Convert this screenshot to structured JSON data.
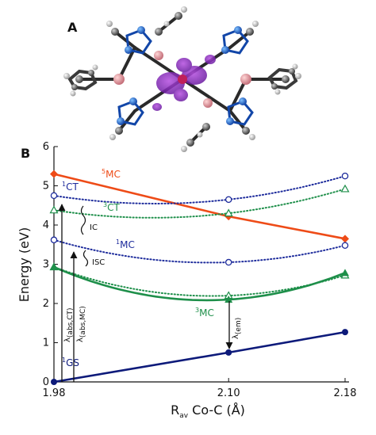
{
  "panels": {
    "a": "A",
    "b": "B"
  },
  "chart_data": {
    "type": "line",
    "xlabel": {
      "main": "R",
      "sub": "av",
      "rest": " Co-C (Å)"
    },
    "ylabel": "Energy (eV)",
    "x": [
      1.98,
      2.1,
      2.18
    ],
    "x_tick_labels": [
      "1.98",
      "2.10",
      "2.18"
    ],
    "ylim": [
      0,
      6
    ],
    "y_ticks": [
      0,
      1,
      2,
      3,
      4,
      5,
      6
    ],
    "grid": false,
    "series": [
      {
        "key": "5MC",
        "label": {
          "sup": "5",
          "main": "MC"
        },
        "color": "#ee4b17",
        "style": "solid",
        "marker": "diamond",
        "values": [
          5.3,
          4.22,
          3.65
        ]
      },
      {
        "key": "1CT",
        "label": {
          "sup": "1",
          "main": "CT"
        },
        "color": "#1e2c9c",
        "style": "dotted",
        "marker": "open-circle",
        "values": [
          4.75,
          4.65,
          5.25
        ]
      },
      {
        "key": "3CT",
        "label": {
          "sup": "3",
          "main": "CT"
        },
        "color": "#1e8f4a",
        "style": "dotted",
        "marker": "open-triangle",
        "values": [
          4.38,
          4.3,
          4.92
        ]
      },
      {
        "key": "1MC",
        "label": {
          "sup": "1",
          "main": "MC"
        },
        "color": "#1e2c9c",
        "style": "dotted",
        "marker": "open-circle",
        "values": [
          3.62,
          3.05,
          3.48
        ]
      },
      {
        "key": "3MC_dot",
        "label": null,
        "color": "#1e8f4a",
        "style": "dotted",
        "marker": "open-triangle",
        "values": [
          2.93,
          2.2,
          2.72
        ]
      },
      {
        "key": "3MC",
        "label": {
          "sup": "3",
          "main": "MC"
        },
        "color": "#1e8f4a",
        "style": "solid",
        "marker": "triangle",
        "values": [
          2.93,
          2.1,
          2.78
        ]
      },
      {
        "key": "1GS",
        "label": {
          "sup": "1",
          "main": "GS"
        },
        "color": "#0d1a7a",
        "style": "solid",
        "marker": "circle",
        "values": [
          0.0,
          0.75,
          1.27
        ]
      }
    ],
    "annotations": {
      "abs_ct": {
        "main": "λ",
        "sub": "(abs,CT)"
      },
      "abs_mc": {
        "main": "λ",
        "sub": "(abs,MC)"
      },
      "em": {
        "main": "λ",
        "sub": "(em)"
      },
      "ic": "IC",
      "isc": "ISC"
    }
  }
}
